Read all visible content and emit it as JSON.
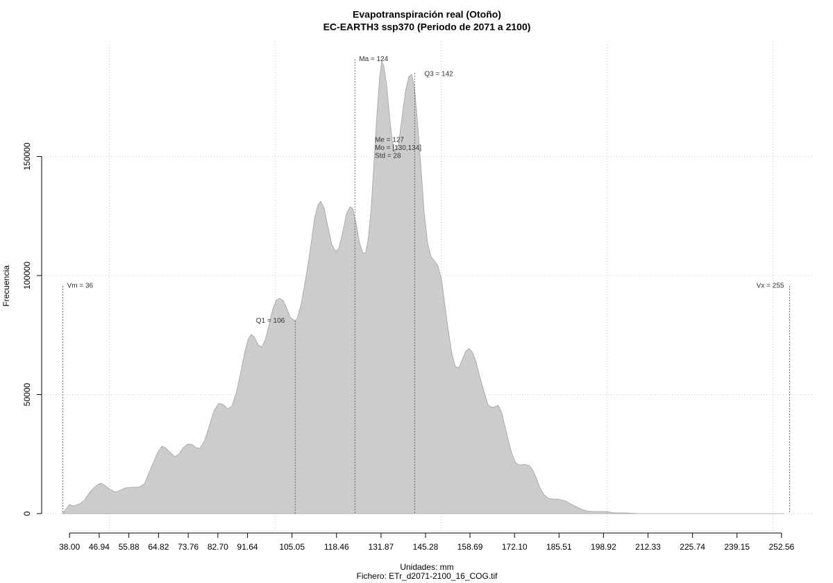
{
  "chart_data": {
    "type": "area",
    "title": "Evapotranspiración real (Otoño)",
    "subtitle": "EC-EARTH3 ssp370 (Periodo de 2071 a 2100)",
    "x_label": "Unidades: mm",
    "caption": "Fichero: ETr_d2071-2100_16_COG.tif",
    "y_label": "Frecuencia",
    "color": "#cccccc",
    "line_color": "#a0a0a0",
    "x": [
      35.91,
      38.0,
      39.05,
      41.14,
      42.6,
      44.27,
      45.95,
      47.41,
      48.87,
      50.13,
      51.8,
      53.06,
      54.73,
      56.82,
      58.91,
      60.59,
      61.63,
      63.09,
      64.56,
      65.81,
      66.86,
      68.32,
      69.79,
      71.04,
      72.09,
      73.55,
      74.81,
      76.06,
      77.31,
      78.78,
      80.24,
      81.5,
      82.96,
      84.42,
      85.68,
      86.93,
      88.19,
      89.44,
      90.91,
      91.95,
      92.79,
      93.63,
      94.88,
      95.93,
      96.97,
      98.02,
      99.27,
      100.32,
      101.36,
      102.41,
      103.45,
      104.5,
      105.75,
      106.59,
      107.85,
      108.68,
      109.73,
      110.77,
      111.82,
      112.87,
      113.7,
      114.75,
      115.79,
      117.05,
      118.09,
      119.14,
      120.18,
      121.44,
      122.48,
      123.32,
      124.37,
      125.41,
      126.46,
      127.29,
      128.13,
      128.97,
      129.8,
      130.64,
      131.48,
      132.1,
      132.73,
      133.57,
      134.4,
      135.24,
      136.08,
      137.12,
      138.17,
      139.21,
      140.26,
      141.1,
      141.93,
      142.77,
      143.82,
      144.86,
      145.91,
      146.95,
      148.0,
      149.04,
      150.09,
      151.14,
      152.18,
      153.23,
      154.27,
      155.32,
      156.36,
      157.41,
      158.45,
      159.5,
      160.54,
      161.59,
      162.84,
      164.1,
      165.14,
      166.19,
      167.23,
      168.28,
      169.33,
      170.37,
      171.42,
      172.46,
      173.51,
      175.18,
      176.65,
      177.69,
      178.74,
      179.78,
      181.04,
      182.29,
      183.55,
      184.8,
      186.06,
      187.52,
      188.98,
      190.66,
      192.33,
      193.79,
      195.88,
      197.98,
      200.07,
      202.16,
      205.29,
      209.48,
      215.75,
      226.21,
      236.66,
      247.12,
      253.39
    ],
    "values": [
      0,
      3790,
      3207,
      4081,
      5830,
      9328,
      11660,
      12826,
      11660,
      10203,
      9037,
      9620,
      10786,
      11077,
      11077,
      12535,
      16033,
      20988,
      25652,
      28276,
      27693,
      25652,
      23903,
      25069,
      27401,
      29150,
      29150,
      27693,
      27401,
      30899,
      37312,
      43142,
      46349,
      45766,
      44017,
      45183,
      50430,
      58300,
      68503,
      73750,
      75207,
      74333,
      70835,
      69960,
      72875,
      78705,
      85993,
      89782,
      90365,
      89491,
      86284,
      82495,
      81037,
      81912,
      88325,
      94738,
      103483,
      113102,
      123888,
      129718,
      131175,
      128260,
      120973,
      113102,
      110187,
      111353,
      117183,
      125928,
      128843,
      128260,
      121847,
      113685,
      109313,
      109604,
      116600,
      129718,
      148665,
      167613,
      183645,
      190058,
      188018,
      180147,
      167613,
      156536,
      152163,
      155078,
      166155,
      177232,
      183645,
      184520,
      179273,
      166155,
      147208,
      126803,
      113685,
      107855,
      106106,
      104066,
      98527,
      87450,
      76665,
      67045,
      61798,
      61215,
      64713,
      68211,
      69377,
      67628,
      63547,
      57717,
      51596,
      45766,
      44600,
      44891,
      45474,
      42268,
      36146,
      30025,
      24778,
      21280,
      20405,
      20697,
      20114,
      18073,
      14575,
      10786,
      7871,
      6413,
      6122,
      6122,
      5830,
      5247,
      4081,
      2915,
      1749,
      1166,
      875,
      875,
      875,
      292,
      292,
      0,
      0,
      0,
      0,
      0,
      0
    ],
    "xlim": [
      29.6,
      261.8
    ],
    "ylim": [
      -8160,
      198250
    ],
    "xticks": [
      {
        "value": 38,
        "label": "38.00"
      },
      {
        "value": 46.94,
        "label": "46.94"
      },
      {
        "value": 55.88,
        "label": "55.88"
      },
      {
        "value": 64.82,
        "label": "64.82"
      },
      {
        "value": 73.76,
        "label": "73.76"
      },
      {
        "value": 82.7,
        "label": "82.70"
      },
      {
        "value": 91.64,
        "label": "91.64"
      },
      {
        "value": 105.05,
        "label": "105.05"
      },
      {
        "value": 118.46,
        "label": "118.46"
      },
      {
        "value": 131.87,
        "label": "131.87"
      },
      {
        "value": 145.28,
        "label": "145.28"
      },
      {
        "value": 158.69,
        "label": "158.69"
      },
      {
        "value": 172.1,
        "label": "172.10"
      },
      {
        "value": 185.51,
        "label": "185.51"
      },
      {
        "value": 198.92,
        "label": "198.92"
      },
      {
        "value": 212.33,
        "label": "212.33"
      },
      {
        "value": 225.74,
        "label": "225.74"
      },
      {
        "value": 239.15,
        "label": "239.15"
      },
      {
        "value": 252.56,
        "label": "252.56"
      }
    ],
    "yticks": [
      0,
      50000,
      100000,
      150000
    ],
    "xgrid": [
      50,
      100,
      150,
      200,
      250
    ],
    "grid": true,
    "annotations": [
      {
        "label": "Vm = 36",
        "x": 36,
        "y": 95600
      },
      {
        "label": "Q1 = 106",
        "x": 106,
        "y": 81000
      },
      {
        "label": "Ma = 124",
        "x": 124,
        "y": 190900
      },
      {
        "label": "Q3 = 142",
        "x": 142,
        "y": 185100
      },
      {
        "label": "Vx = 255",
        "x": 255,
        "y": 95600
      }
    ],
    "stats": [
      "Me = 127",
      "Mo = [130,134]",
      "Std = 28"
    ]
  }
}
